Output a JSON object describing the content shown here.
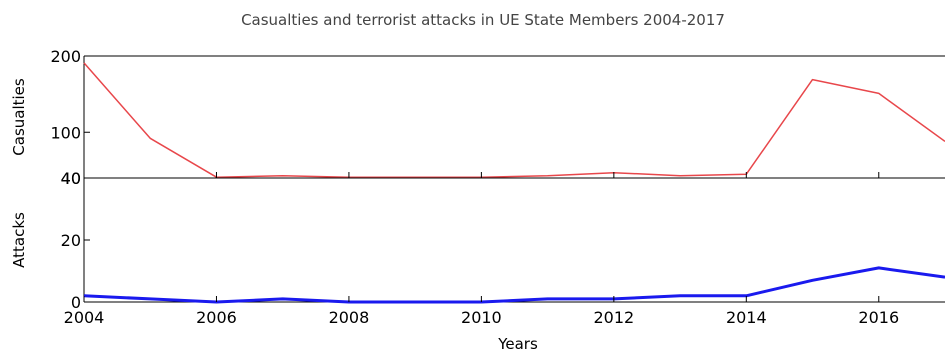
{
  "chart_data": {
    "type": "line",
    "title": "Casualties and terrorist attacks in UE State Members 2004-2017",
    "xlabel": "Years",
    "x": [
      2004,
      2005,
      2006,
      2007,
      2008,
      2009,
      2010,
      2011,
      2012,
      2013,
      2014,
      2015,
      2016,
      2017
    ],
    "xlim": [
      2004,
      2017
    ],
    "xticks": [
      "2004",
      "2006",
      "2008",
      "2010",
      "2012",
      "2014",
      "2016"
    ],
    "panels": [
      {
        "ylabel": "Casualties",
        "yticks": [
          "200",
          "100",
          "40"
        ],
        "ylim": [
          40,
          200
        ],
        "series": [
          {
            "color": "#e8474b",
            "values": [
              191,
              92,
              41,
              43,
              41,
              41,
              41,
              43,
              47,
              43,
              45,
              169,
              151,
              88
            ]
          }
        ]
      },
      {
        "ylabel": "Attacks",
        "yticks": [
          "40",
          "20",
          "0"
        ],
        "ylim": [
          0,
          40
        ],
        "series": [
          {
            "color": "#1a1aee",
            "values": [
              2,
              1,
              0,
              1,
              0,
              0,
              0,
              1,
              1,
              2,
              2,
              7,
              11,
              8
            ]
          }
        ]
      }
    ],
    "grid": false
  }
}
